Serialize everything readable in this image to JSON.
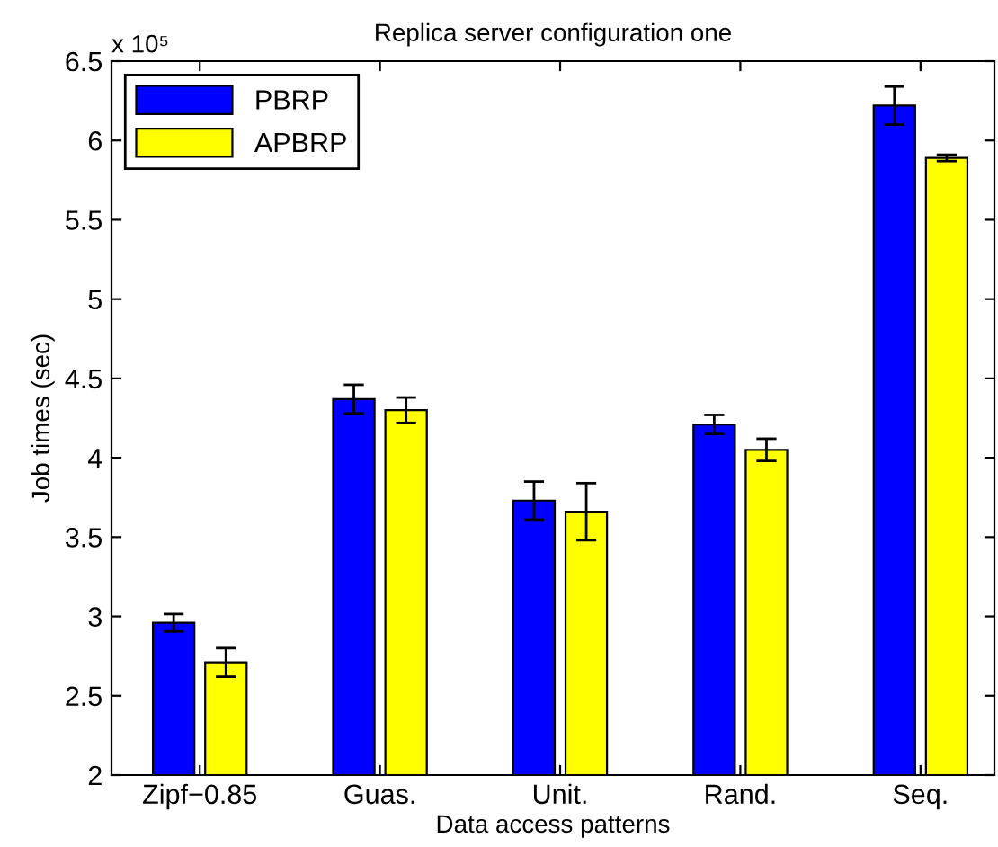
{
  "chart_data": {
    "type": "bar",
    "title": "Replica server configuration one",
    "xlabel": "Data access patterns",
    "ylabel": "Job times (sec)",
    "categories": [
      "Zipf−0.85",
      "Guas.",
      "Unit.",
      "Rand.",
      "Seq."
    ],
    "series": [
      {
        "name": "PBRP",
        "color": "#0000ff",
        "values": [
          2.96,
          4.37,
          3.73,
          4.21,
          6.22
        ],
        "errors": [
          0.055,
          0.09,
          0.12,
          0.06,
          0.12
        ]
      },
      {
        "name": "APBRP",
        "color": "#ffff00",
        "values": [
          2.71,
          4.3,
          3.66,
          4.05,
          5.89
        ],
        "errors": [
          0.09,
          0.08,
          0.18,
          0.07,
          0.02
        ]
      }
    ],
    "ylim": [
      2,
      6.5
    ],
    "yticks": [
      2,
      2.5,
      3,
      3.5,
      4,
      4.5,
      5,
      5.5,
      6,
      6.5
    ],
    "annotations": [
      "x 10⁵"
    ],
    "legend": "top left",
    "grid": false
  }
}
